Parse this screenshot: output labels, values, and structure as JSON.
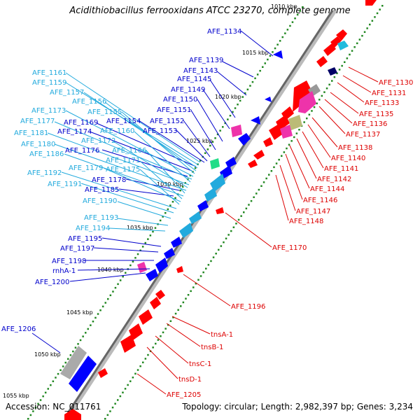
{
  "title": "Acidithiobacillus ferrooxidans ATCC 23270, complete genome",
  "footer": {
    "accession": "Accession: NC_011761",
    "topology": "Topology: circular; Length: 2,982,397 bp; Genes: 3,234"
  },
  "colors": {
    "forward_feature": "#ff0000",
    "reverse_feature": "#0000ff",
    "reverse_label_light": "#22aadd",
    "reverse_label_dark": "#0000cc",
    "forward_label": "#dd0000",
    "backbone": "#888888",
    "tick": "#228822"
  },
  "scale_labels": [
    "1010 kbp",
    "1015 kbp",
    "1020 kbp",
    "1025 kbp",
    "1030 kbp",
    "1035 kbp",
    "1040 kbp",
    "1045 kbp",
    "1050 kbp",
    "1055 kbp"
  ],
  "labels_right": [
    "AFE_1130",
    "AFE_1131",
    "AFE_1133",
    "AFE_1135",
    "AFE_1136",
    "AFE_1137",
    "AFE_1138",
    "AFE_1140",
    "AFE_1141",
    "AFE_1142",
    "AFE_1144",
    "AFE_1146",
    "AFE_1147",
    "AFE_1148",
    "AFE_1170",
    "AFE_1196",
    "tnsA-1",
    "tnsB-1",
    "tnsC-1",
    "tnsD-1",
    "AFE_1205"
  ],
  "labels_left_dark": [
    "AFE_1134",
    "AFE_1139",
    "AFE_1143",
    "AFE_1145",
    "AFE_1149",
    "AFE_1150",
    "AFE_1151",
    "AFE_1152",
    "AFE_1153",
    "AFE_1154",
    "AFE_1169",
    "AFE_1174",
    "AFE_1176",
    "AFE_1178",
    "AFE_1185",
    "AFE_1195",
    "AFE_1197",
    "AFE_1198",
    "rnhA-1",
    "AFE_1200",
    "AFE_1206"
  ],
  "labels_left_light": [
    "AFE_1161",
    "AFE_1159",
    "AFE_1157",
    "AFE_1156",
    "AFE_1155",
    "AFE_1173",
    "AFE_1177",
    "AFE_1160",
    "AFE_1181",
    "AFE_1172",
    "AFE_1180",
    "AFE_1166",
    "AFE_1186",
    "AFE_1171",
    "AFE_1179",
    "AFE_1175",
    "AFE_1192",
    "AFE_1191",
    "AFE_1190",
    "AFE_1193",
    "AFE_1194"
  ]
}
